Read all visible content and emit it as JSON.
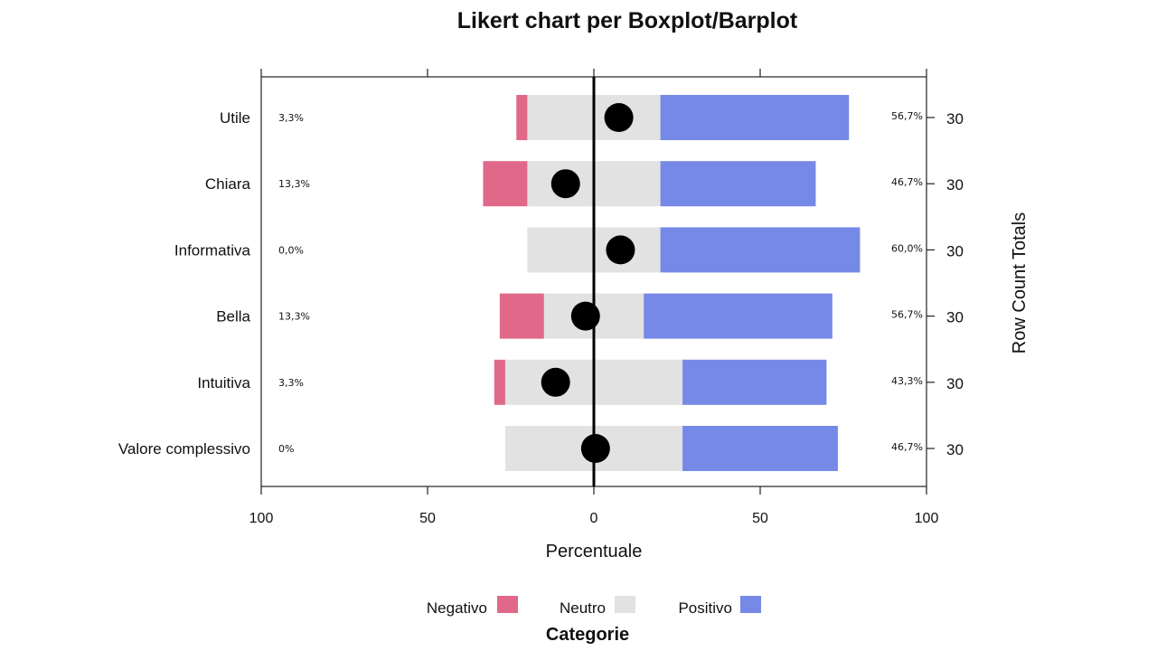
{
  "chart_data": {
    "type": "bar",
    "title": "Likert chart per Boxplot/Barplot",
    "xlabel": "Percentuale",
    "right_axis_label": "Row Count Totals",
    "xlim": [
      -100,
      100
    ],
    "x_ticks": [
      -100,
      -50,
      0,
      50,
      100
    ],
    "x_tick_labels": [
      "100",
      "50",
      "0",
      "50",
      "100"
    ],
    "categories": [
      "Utile",
      "Chiara",
      "Informativa",
      "Bella",
      "Intuitiva",
      "Valore complessivo"
    ],
    "series": [
      {
        "name": "Negativo",
        "color": "#e0698a",
        "values": [
          3.3,
          13.3,
          0.0,
          13.3,
          3.3,
          0.0
        ]
      },
      {
        "name": "Neutro",
        "color": "#e2e2e2",
        "values": [
          40.0,
          40.0,
          40.0,
          30.0,
          53.3,
          53.3
        ]
      },
      {
        "name": "Positivo",
        "color": "#7689e6",
        "values": [
          56.7,
          46.7,
          60.0,
          56.7,
          43.3,
          46.7
        ]
      }
    ],
    "dot_values": [
      7.5,
      -8.5,
      8,
      -2.5,
      -11.5,
      0.5
    ],
    "left_annotations": [
      "3,3%",
      "13,3%",
      "0,0%",
      "13,3%",
      "3,3%",
      "0%"
    ],
    "right_annotations": [
      "56,7%",
      "46,7%",
      "60,0%",
      "56,7%",
      "43,3%",
      "46,7%"
    ],
    "row_totals": [
      "30",
      "30",
      "30",
      "30",
      "30",
      "30"
    ],
    "legend_title": "Categorie",
    "legend": [
      "Negativo",
      "Neutro",
      "Positivo"
    ],
    "legend_placement": "bottom",
    "grid": false
  }
}
